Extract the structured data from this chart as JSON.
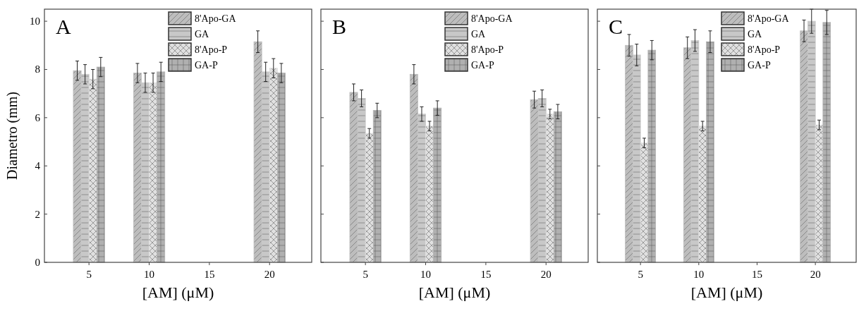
{
  "chart_data": [
    {
      "type": "bar",
      "title": "A",
      "xlabel": "[AM] (μM)",
      "ylabel": "Diametro (mm)",
      "x": [
        5,
        10,
        20
      ],
      "xlim": [
        1.3,
        23.5
      ],
      "xticks": [
        5,
        10,
        15,
        20
      ],
      "ylim": [
        0,
        10.5
      ],
      "yticks": [
        0,
        2,
        4,
        6,
        8,
        10
      ],
      "legend": "top right",
      "series": [
        {
          "name": "8'Apo-GA",
          "color": "#bdbdbd",
          "values": [
            7.95,
            7.85,
            9.15
          ],
          "errors": [
            0.4,
            0.4,
            0.45
          ]
        },
        {
          "name": "GA",
          "color": "#c8c8c8",
          "values": [
            7.8,
            7.45,
            7.9
          ],
          "errors": [
            0.4,
            0.4,
            0.4
          ]
        },
        {
          "name": "8'Apo-P",
          "color": "#e0e0e0",
          "values": [
            7.6,
            7.45,
            8.05
          ],
          "errors": [
            0.4,
            0.4,
            0.4
          ]
        },
        {
          "name": "GA-P",
          "color": "#b0b0b0",
          "values": [
            8.1,
            7.9,
            7.85
          ],
          "errors": [
            0.4,
            0.4,
            0.4
          ]
        }
      ]
    },
    {
      "type": "bar",
      "title": "B",
      "xlabel": "[AM] (μM)",
      "x": [
        5,
        10,
        20
      ],
      "xlim": [
        1.3,
        23.5
      ],
      "xticks": [
        5,
        10,
        15,
        20
      ],
      "ylim": [
        0,
        10.5
      ],
      "yticks": [
        0,
        2,
        4,
        6,
        8,
        10
      ],
      "tick_labels": "x",
      "legend": "top right",
      "series": [
        {
          "name": "8'Apo-GA",
          "color": "#bdbdbd",
          "values": [
            7.05,
            7.8,
            6.75
          ],
          "errors": [
            0.35,
            0.4,
            0.35
          ]
        },
        {
          "name": "GA",
          "color": "#c8c8c8",
          "values": [
            6.8,
            6.15,
            6.8
          ],
          "errors": [
            0.35,
            0.3,
            0.35
          ]
        },
        {
          "name": "8'Apo-P",
          "color": "#e0e0e0",
          "values": [
            5.35,
            5.65,
            6.15
          ],
          "errors": [
            0.2,
            0.2,
            0.2
          ]
        },
        {
          "name": "GA-P",
          "color": "#b0b0b0",
          "values": [
            6.3,
            6.4,
            6.25
          ],
          "errors": [
            0.3,
            0.3,
            0.3
          ]
        }
      ]
    },
    {
      "type": "bar",
      "title": "C",
      "xlabel": "[AM] (μM)",
      "x": [
        5,
        10,
        20
      ],
      "xlim": [
        1.3,
        23.5
      ],
      "xticks": [
        5,
        10,
        15,
        20
      ],
      "ylim": [
        0,
        10.5
      ],
      "yticks": [
        0,
        2,
        4,
        6,
        8,
        10
      ],
      "tick_labels": "x",
      "legend": "top right",
      "series": [
        {
          "name": "8'Apo-GA",
          "color": "#bdbdbd",
          "values": [
            9.0,
            8.9,
            9.6
          ],
          "errors": [
            0.45,
            0.45,
            0.45
          ]
        },
        {
          "name": "GA",
          "color": "#c8c8c8",
          "values": [
            8.6,
            9.2,
            10.0
          ],
          "errors": [
            0.45,
            0.45,
            0.5
          ]
        },
        {
          "name": "8'Apo-P",
          "color": "#e0e0e0",
          "values": [
            4.95,
            5.65,
            5.7
          ],
          "errors": [
            0.2,
            0.2,
            0.2
          ]
        },
        {
          "name": "GA-P",
          "color": "#b0b0b0",
          "values": [
            8.8,
            9.15,
            9.95
          ],
          "errors": [
            0.4,
            0.45,
            0.5
          ]
        }
      ]
    }
  ]
}
